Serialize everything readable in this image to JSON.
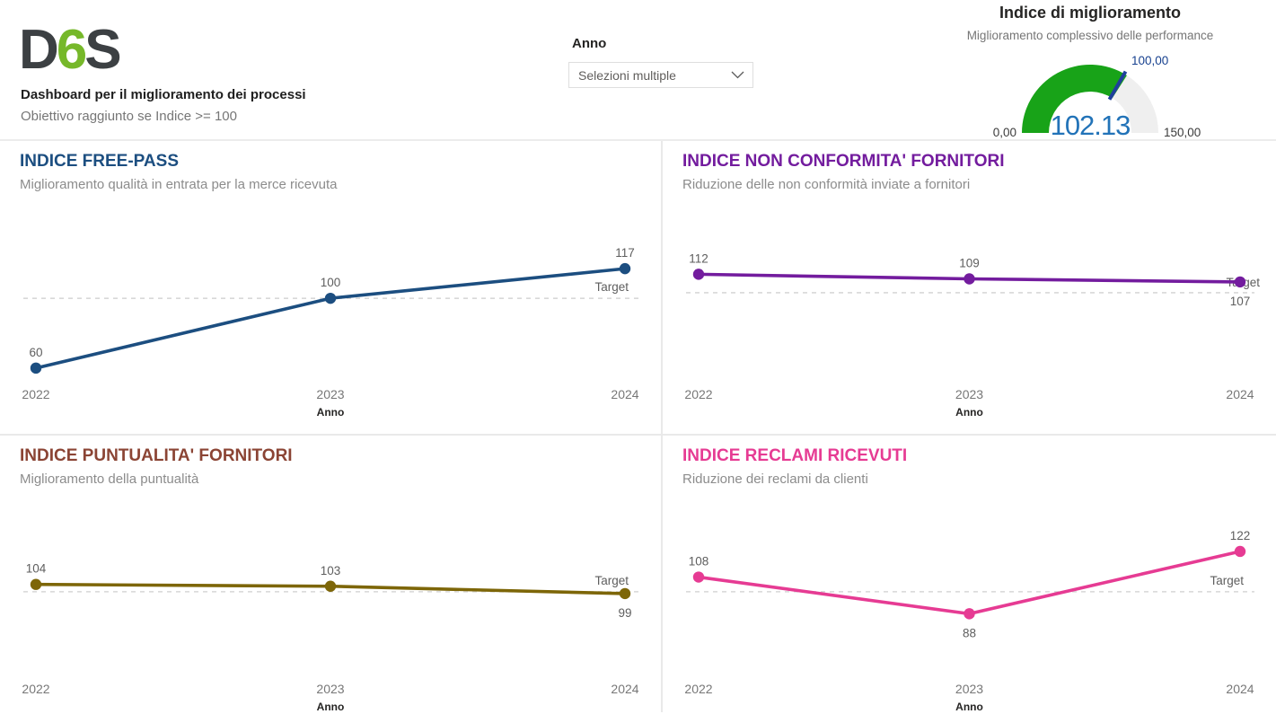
{
  "header": {
    "logo_text": [
      "D",
      "6",
      "S"
    ],
    "logo_colors": {
      "dark": "#3C4043",
      "green": "#76B82A"
    },
    "title": "Dashboard per il miglioramento dei processi",
    "subtitle": "Obiettivo raggiunto se Indice >= 100"
  },
  "slicer": {
    "label": "Anno",
    "value": "Selezioni multiple",
    "chevron_icon": "chevron-down"
  },
  "chart_data": [
    {
      "type": "gauge",
      "title": "Indice di miglioramento",
      "subtitle": "Miglioramento complessivo delle performance",
      "min": 0,
      "max": 150,
      "value": 102.13,
      "target": 100,
      "labels": {
        "min": "0,00",
        "max": "150,00",
        "target": "100,00",
        "value": "102.13"
      },
      "colors": {
        "fill": "#18A318",
        "track": "#EFEFEF",
        "needle": "#1F3F9C",
        "value_text": "#2273B8",
        "target_text": "#17418F"
      }
    },
    {
      "type": "line",
      "title": "INDICE FREE-PASS",
      "subtitle": "Miglioramento qualità in entrata per la merce ricevuta",
      "categories": [
        "2022",
        "2023",
        "2024"
      ],
      "values": [
        60,
        100,
        117
      ],
      "target": 100,
      "target_label": "Target",
      "xlabel": "Anno",
      "color": "#1C4E80",
      "title_color": "#1C4E80",
      "ylim": [
        46,
        149
      ],
      "grid": false,
      "label_positions": [
        "above",
        "above",
        "above"
      ],
      "target_label_mode": "above-right"
    },
    {
      "type": "line",
      "title": "INDICE NON CONFORMITA' FORNITORI",
      "subtitle": "Riduzione delle non conformità inviate a fornitori",
      "categories": [
        "2022",
        "2023",
        "2024"
      ],
      "values": [
        112,
        109,
        107
      ],
      "target": 100,
      "target_label": "Target",
      "xlabel": "Anno",
      "color": "#731C9E",
      "title_color": "#731C9E",
      "ylim": [
        35,
        152
      ],
      "grid": false,
      "label_positions": [
        "above",
        "above",
        "below"
      ],
      "target_label_mode": "on-line"
    },
    {
      "type": "line",
      "title": "INDICE PUNTUALITA' FORNITORI",
      "subtitle": "Miglioramento della puntualità",
      "categories": [
        "2022",
        "2023",
        "2024"
      ],
      "values": [
        104,
        103,
        99
      ],
      "target": 100,
      "target_label": "Target",
      "xlabel": "Anno",
      "color": "#7D6608",
      "title_color": "#8B4434",
      "ylim": [
        48,
        146
      ],
      "grid": false,
      "label_positions": [
        "above",
        "above",
        "below"
      ],
      "target_label_mode": "above-right"
    },
    {
      "type": "line",
      "title": "INDICE RECLAMI RICEVUTI",
      "subtitle": "Riduzione dei reclami da clienti",
      "categories": [
        "2022",
        "2023",
        "2024"
      ],
      "values": [
        108,
        88,
        122
      ],
      "target": 100,
      "target_label": "Target",
      "xlabel": "Anno",
      "color": "#E63B93",
      "title_color": "#E63B93",
      "ylim": [
        48,
        146
      ],
      "grid": false,
      "label_positions": [
        "above",
        "below",
        "above"
      ],
      "target_label_mode": "above-right"
    }
  ]
}
